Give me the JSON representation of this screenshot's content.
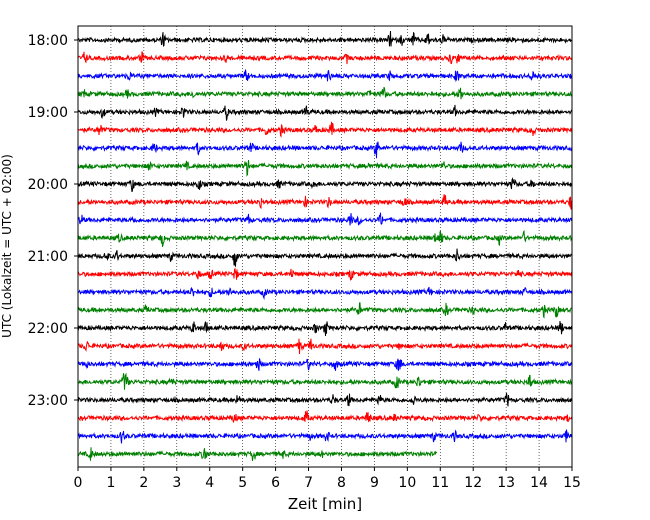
{
  "chart_data": {
    "type": "line",
    "title": "",
    "xlabel": "Zeit  [min]",
    "ylabel": "UTC (Lokalzeit = UTC + 02:00)",
    "xlim": [
      0,
      15
    ],
    "x_ticks": [
      "0",
      "1",
      "2",
      "3",
      "4",
      "5",
      "6",
      "7",
      "8",
      "9",
      "10",
      "11",
      "12",
      "13",
      "14",
      "15"
    ],
    "y_ticks": [
      "18:00",
      "19:00",
      "20:00",
      "21:00",
      "22:00",
      "23:00"
    ],
    "grid": "vertical dotted lines at each minute",
    "trace_interval_min": 15,
    "color_cycle": [
      "#000000",
      "#ff0000",
      "#0000ff",
      "#008000"
    ],
    "series": [
      {
        "start": "18:00",
        "color": "#000000",
        "end_min": 15
      },
      {
        "start": "18:15",
        "color": "#ff0000",
        "end_min": 15
      },
      {
        "start": "18:30",
        "color": "#0000ff",
        "end_min": 15
      },
      {
        "start": "18:45",
        "color": "#008000",
        "end_min": 15
      },
      {
        "start": "19:00",
        "color": "#000000",
        "end_min": 15
      },
      {
        "start": "19:15",
        "color": "#ff0000",
        "end_min": 15
      },
      {
        "start": "19:30",
        "color": "#0000ff",
        "end_min": 15
      },
      {
        "start": "19:45",
        "color": "#008000",
        "end_min": 15
      },
      {
        "start": "20:00",
        "color": "#000000",
        "end_min": 15
      },
      {
        "start": "20:15",
        "color": "#ff0000",
        "end_min": 15
      },
      {
        "start": "20:30",
        "color": "#0000ff",
        "end_min": 15
      },
      {
        "start": "20:45",
        "color": "#008000",
        "end_min": 15
      },
      {
        "start": "21:00",
        "color": "#000000",
        "end_min": 15
      },
      {
        "start": "21:15",
        "color": "#ff0000",
        "end_min": 15
      },
      {
        "start": "21:30",
        "color": "#0000ff",
        "end_min": 15
      },
      {
        "start": "21:45",
        "color": "#008000",
        "end_min": 15
      },
      {
        "start": "22:00",
        "color": "#000000",
        "end_min": 15
      },
      {
        "start": "22:15",
        "color": "#ff0000",
        "end_min": 15
      },
      {
        "start": "22:30",
        "color": "#0000ff",
        "end_min": 15
      },
      {
        "start": "22:45",
        "color": "#008000",
        "end_min": 15
      },
      {
        "start": "23:00",
        "color": "#000000",
        "end_min": 15
      },
      {
        "start": "23:15",
        "color": "#ff0000",
        "end_min": 15
      },
      {
        "start": "23:30",
        "color": "#0000ff",
        "end_min": 15
      },
      {
        "start": "23:45",
        "color": "#008000",
        "end_min": 10.9
      }
    ]
  }
}
